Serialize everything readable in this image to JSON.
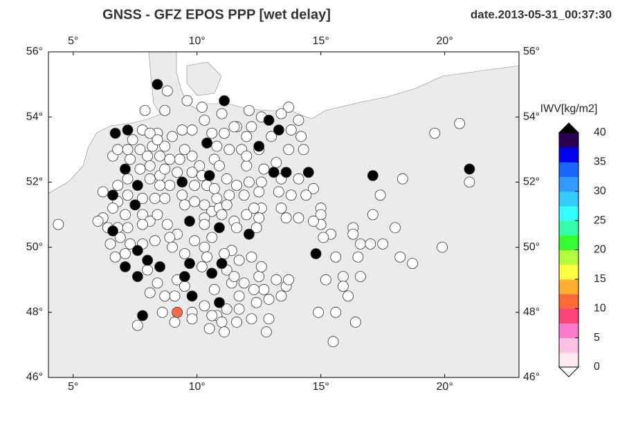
{
  "chart_data": {
    "type": "scatter",
    "title": "GNSS  -  GFZ EPOS PPP [wet delay]",
    "subtitle": "date.2013-05-31_00:37:30",
    "xlim": [
      4,
      23
    ],
    "ylim": [
      46,
      56
    ],
    "xticks": [
      {
        "value": 5,
        "label": "5°"
      },
      {
        "value": 10,
        "label": "10°"
      },
      {
        "value": 15,
        "label": "15°"
      },
      {
        "value": 20,
        "label": "20°"
      }
    ],
    "yticks": [
      {
        "value": 46,
        "label": "46°"
      },
      {
        "value": 48,
        "label": "48°"
      },
      {
        "value": 50,
        "label": "50°"
      },
      {
        "value": 52,
        "label": "52°"
      },
      {
        "value": 54,
        "label": "54°"
      },
      {
        "value": 56,
        "label": "56°"
      }
    ],
    "series": [
      {
        "color": "#ffffff",
        "x": [
          8.8,
          7.9,
          8.7,
          9.6,
          10.2,
          11.0,
          12.1,
          13.7,
          14.1,
          13.4,
          12.6,
          11.6,
          12.2,
          13.0,
          13.8,
          14.2,
          14.3,
          13.7,
          13.2,
          12.7,
          12.6,
          13.4,
          14.1,
          14.7,
          14.4,
          13.8,
          13.3,
          12.6,
          13.4,
          13.6,
          14.1,
          15.0,
          15.0,
          15.0,
          14.7,
          9.4,
          9.8,
          10.3,
          10.6,
          10.8,
          11.1,
          11.5,
          12.0,
          11.8,
          11.3,
          10.7,
          10.1,
          9.8,
          9.5,
          9.3,
          8.9,
          8.7,
          9.0,
          8.4,
          7.8,
          7.4,
          8.1,
          8.2,
          7.7,
          7.3,
          8.0,
          8.5,
          8.1,
          7.7,
          7.2,
          6.8,
          6.2,
          6.8,
          7.2,
          7.8,
          8.1,
          8.5,
          8.7,
          9.2,
          9.8,
          10.2,
          10.4,
          9.9,
          9.4,
          8.9,
          8.5,
          8.3,
          7.8,
          8.1,
          7.1,
          6.6,
          6.2,
          6.0,
          6.4,
          6.8,
          7.2,
          7.8,
          8.8,
          8.4,
          8.7,
          9.5,
          9.9,
          10.3,
          10.6,
          10.9,
          10.3,
          11.0,
          11.5,
          11.6,
          12.4,
          12.5,
          12.0,
          12.3,
          11.9,
          11.3,
          11.2,
          10.8,
          10.7,
          11.6,
          12.1,
          12.5,
          12.0,
          12.0,
          12.5,
          11.2,
          10.9,
          10.3,
          9.2,
          8.9,
          9.0,
          8.3,
          7.8,
          7.3,
          6.9,
          6.5,
          6.7,
          7.1,
          8.0,
          8.4,
          9.2,
          9.5,
          9.1,
          8.7,
          8.1,
          7.6,
          8.6,
          9.1,
          9.8,
          10.3,
          10.8,
          11.2,
          11.7,
          12.4,
          12.7,
          13.2,
          13.6,
          13.7,
          13.4,
          12.9,
          12.3,
          11.7,
          11.4,
          11.9,
          12.5,
          12.6,
          12.2,
          11.7,
          11.4,
          11.1,
          10.3,
          9.5,
          9.9,
          10.6,
          10.4,
          10.2,
          11.2,
          11.5,
          10.7,
          11.0,
          11.6,
          12.2,
          12.9,
          12.8,
          11.1,
          10.6,
          9.8,
          10.5,
          15.6,
          16.6,
          17.0,
          17.5,
          18.0,
          18.2,
          18.7,
          19.9,
          19.6,
          20.6,
          21.0,
          18.3,
          17.4,
          17.1,
          16.3,
          16.3,
          15.4,
          15.1,
          16.5,
          15.2,
          15.9,
          15.9,
          16.6,
          16.1,
          14.9,
          15.6,
          16.4,
          15.5,
          4.4,
          6.6,
          6.8,
          7.2,
          8.4
        ],
        "y": [
          54.8,
          54.2,
          54.2,
          54.5,
          54.3,
          54.1,
          54.2,
          54.3,
          53.9,
          54.1,
          54.0,
          53.7,
          53.7,
          53.4,
          53.6,
          53.4,
          53.0,
          53.0,
          52.6,
          52.4,
          52.0,
          52.1,
          52.1,
          51.8,
          51.6,
          51.6,
          51.7,
          51.2,
          51.2,
          50.9,
          50.9,
          51.2,
          51.0,
          50.7,
          50.8,
          53.6,
          53.6,
          53.9,
          53.5,
          53.1,
          53.5,
          53.7,
          53.4,
          53.0,
          53.0,
          52.7,
          52.5,
          52.8,
          53.0,
          52.7,
          52.7,
          53.1,
          53.4,
          53.5,
          53.6,
          53.3,
          53.5,
          53.1,
          53.0,
          52.7,
          52.8,
          52.8,
          52.5,
          52.4,
          52.1,
          51.9,
          51.7,
          51.4,
          51.6,
          51.5,
          52.1,
          52.2,
          52.4,
          52.3,
          52.3,
          52.2,
          51.9,
          51.9,
          51.6,
          51.9,
          51.9,
          51.5,
          51.0,
          50.8,
          51.0,
          51.2,
          50.9,
          50.8,
          50.6,
          50.6,
          50.6,
          50.7,
          50.7,
          51.0,
          51.5,
          51.3,
          51.4,
          51.3,
          51.1,
          51.2,
          50.9,
          51.0,
          50.8,
          50.6,
          50.6,
          50.9,
          51.0,
          51.2,
          51.6,
          51.6,
          51.3,
          51.5,
          51.8,
          51.9,
          52.0,
          51.7,
          52.5,
          52.8,
          53.0,
          52.1,
          52.5,
          50.7,
          50.4,
          50.3,
          50.0,
          50.2,
          50.1,
          50.1,
          50.3,
          50.1,
          49.7,
          49.8,
          49.3,
          48.9,
          49.0,
          48.8,
          48.5,
          48.5,
          48.6,
          47.6,
          48.0,
          47.7,
          48.0,
          48.2,
          47.9,
          48.1,
          48.1,
          48.3,
          48.7,
          49.0,
          48.8,
          49.0,
          48.5,
          48.4,
          48.7,
          48.5,
          48.9,
          48.9,
          49.1,
          49.4,
          49.7,
          49.6,
          49.9,
          49.8,
          50.0,
          49.8,
          50.2,
          50.3,
          49.7,
          49.4,
          49.3,
          49.1,
          48.7,
          47.7,
          47.7,
          47.8,
          47.8,
          47.4,
          47.4,
          47.9,
          47.8,
          47.5,
          49.7,
          50.1,
          50.1,
          50.1,
          50.6,
          49.7,
          49.5,
          50.0,
          53.5,
          53.8,
          52.0,
          52.1,
          51.6,
          51.0,
          50.6,
          50.4,
          50.4,
          50.3,
          49.7,
          49.0,
          49.1,
          48.8,
          49.1,
          48.5,
          48.0,
          48.0,
          47.7,
          47.1,
          50.7,
          52.8,
          53.0,
          53.0,
          53.3
        ]
      },
      {
        "color": "#000000",
        "x": [
          8.4,
          11.1,
          6.7,
          7.2,
          10.4,
          12.9,
          13.3,
          12.5,
          7.1,
          9.4,
          10.5,
          13.1,
          13.6,
          14.5,
          17.1,
          21.0,
          7.6,
          6.6,
          7.5,
          9.7,
          10.9,
          12.1,
          6.6,
          7.6,
          14.8,
          7.1,
          8.0,
          8.5,
          9.7,
          11.0,
          10.6,
          9.5,
          7.6,
          9.8,
          10.9,
          7.8
        ],
        "y": [
          55.0,
          54.5,
          53.5,
          53.6,
          53.2,
          53.9,
          53.6,
          53.1,
          52.4,
          52.0,
          52.2,
          52.3,
          52.3,
          52.3,
          52.2,
          52.4,
          51.9,
          51.6,
          51.3,
          50.8,
          50.6,
          50.4,
          50.5,
          49.9,
          49.8,
          49.4,
          49.6,
          49.4,
          49.5,
          49.5,
          49.2,
          49.1,
          49.1,
          48.5,
          48.3,
          47.9
        ]
      },
      {
        "color": "#ff6a4d",
        "x": [
          9.2
        ],
        "y": [
          48.0
        ]
      }
    ],
    "colorbar": {
      "label": "IWV[kg/m2]",
      "lim": [
        0,
        40
      ],
      "ticks": [
        0,
        5,
        10,
        15,
        20,
        25,
        30,
        35,
        40
      ],
      "colors": [
        "#ffe8ee",
        "#ffc2e0",
        "#ff7ccc",
        "#ff4477",
        "#ff6a3a",
        "#ffb030",
        "#ffff40",
        "#b4ff40",
        "#33ff33",
        "#33ffaa",
        "#33ffff",
        "#33ccff",
        "#3399ff",
        "#1a66ff",
        "#0000ee",
        "#2a0055"
      ]
    }
  }
}
